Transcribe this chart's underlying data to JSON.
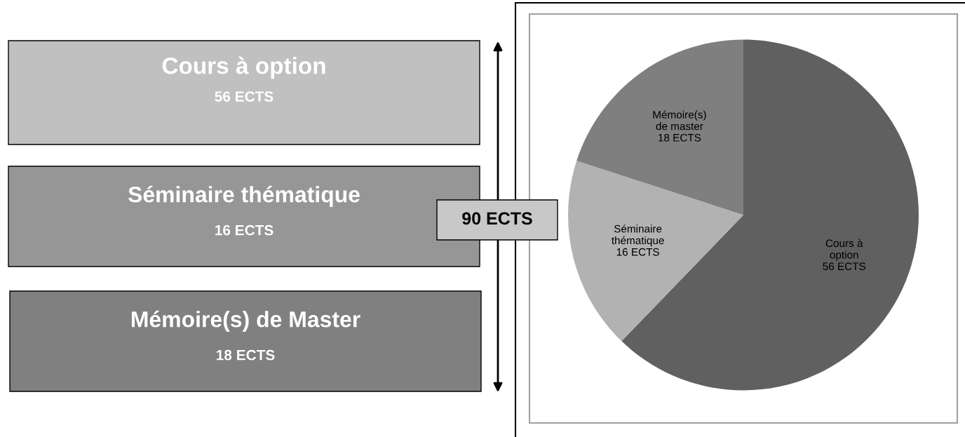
{
  "chart_data": [
    {
      "type": "other",
      "categories": [
        "Cours à option",
        "Séminaire thématique",
        "Mémoire(s) de Master"
      ],
      "value_labels": [
        "56 ECTS",
        "16 ECTS",
        "18 ECTS"
      ],
      "colors": [
        "#c0c0c0",
        "#969696",
        "#808080"
      ],
      "annotations": [
        "90 ECTS"
      ]
    },
    {
      "type": "pie",
      "categories": [
        "Cours à\noption",
        "Séminaire\nthématique",
        "Mémoire(s)\nde master"
      ],
      "values": [
        56,
        16,
        18
      ],
      "value_labels": [
        "56 ECTS",
        "16 ECTS",
        "18 ECTS"
      ],
      "colors": [
        "#606060",
        "#b2b2b2",
        "#7f7f7f"
      ]
    }
  ]
}
